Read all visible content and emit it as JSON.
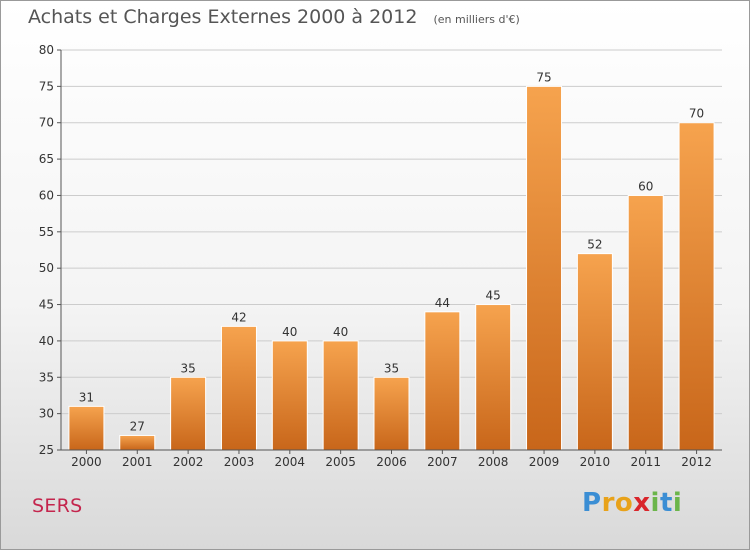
{
  "title": "Achats et Charges Externes 2000 à 2012",
  "unit": "(en milliers d'€)",
  "city": "SERS",
  "logo": {
    "letters": [
      "P",
      "r",
      "o",
      "x",
      "i",
      "t",
      "i"
    ],
    "colors": [
      "#3b8ed4",
      "#e8a21a",
      "#e8a21a",
      "#d9252b",
      "#6bb54a",
      "#3b8ed4",
      "#6bb54a"
    ]
  },
  "colors": {
    "bar_top": "#f6a34e",
    "bar_bottom": "#c8661a",
    "grid": "#cccccc",
    "axis": "#555555",
    "text": "#333333"
  },
  "chart_data": {
    "type": "bar",
    "categories": [
      "2000",
      "2001",
      "2002",
      "2003",
      "2004",
      "2005",
      "2006",
      "2007",
      "2008",
      "2009",
      "2010",
      "2011",
      "2012"
    ],
    "values": [
      31,
      27,
      35,
      42,
      40,
      40,
      35,
      44,
      45,
      75,
      52,
      60,
      70
    ],
    "ylim": [
      25,
      80
    ],
    "yticks": [
      25,
      30,
      35,
      40,
      45,
      50,
      55,
      60,
      65,
      70,
      75,
      80
    ],
    "grid": true
  }
}
